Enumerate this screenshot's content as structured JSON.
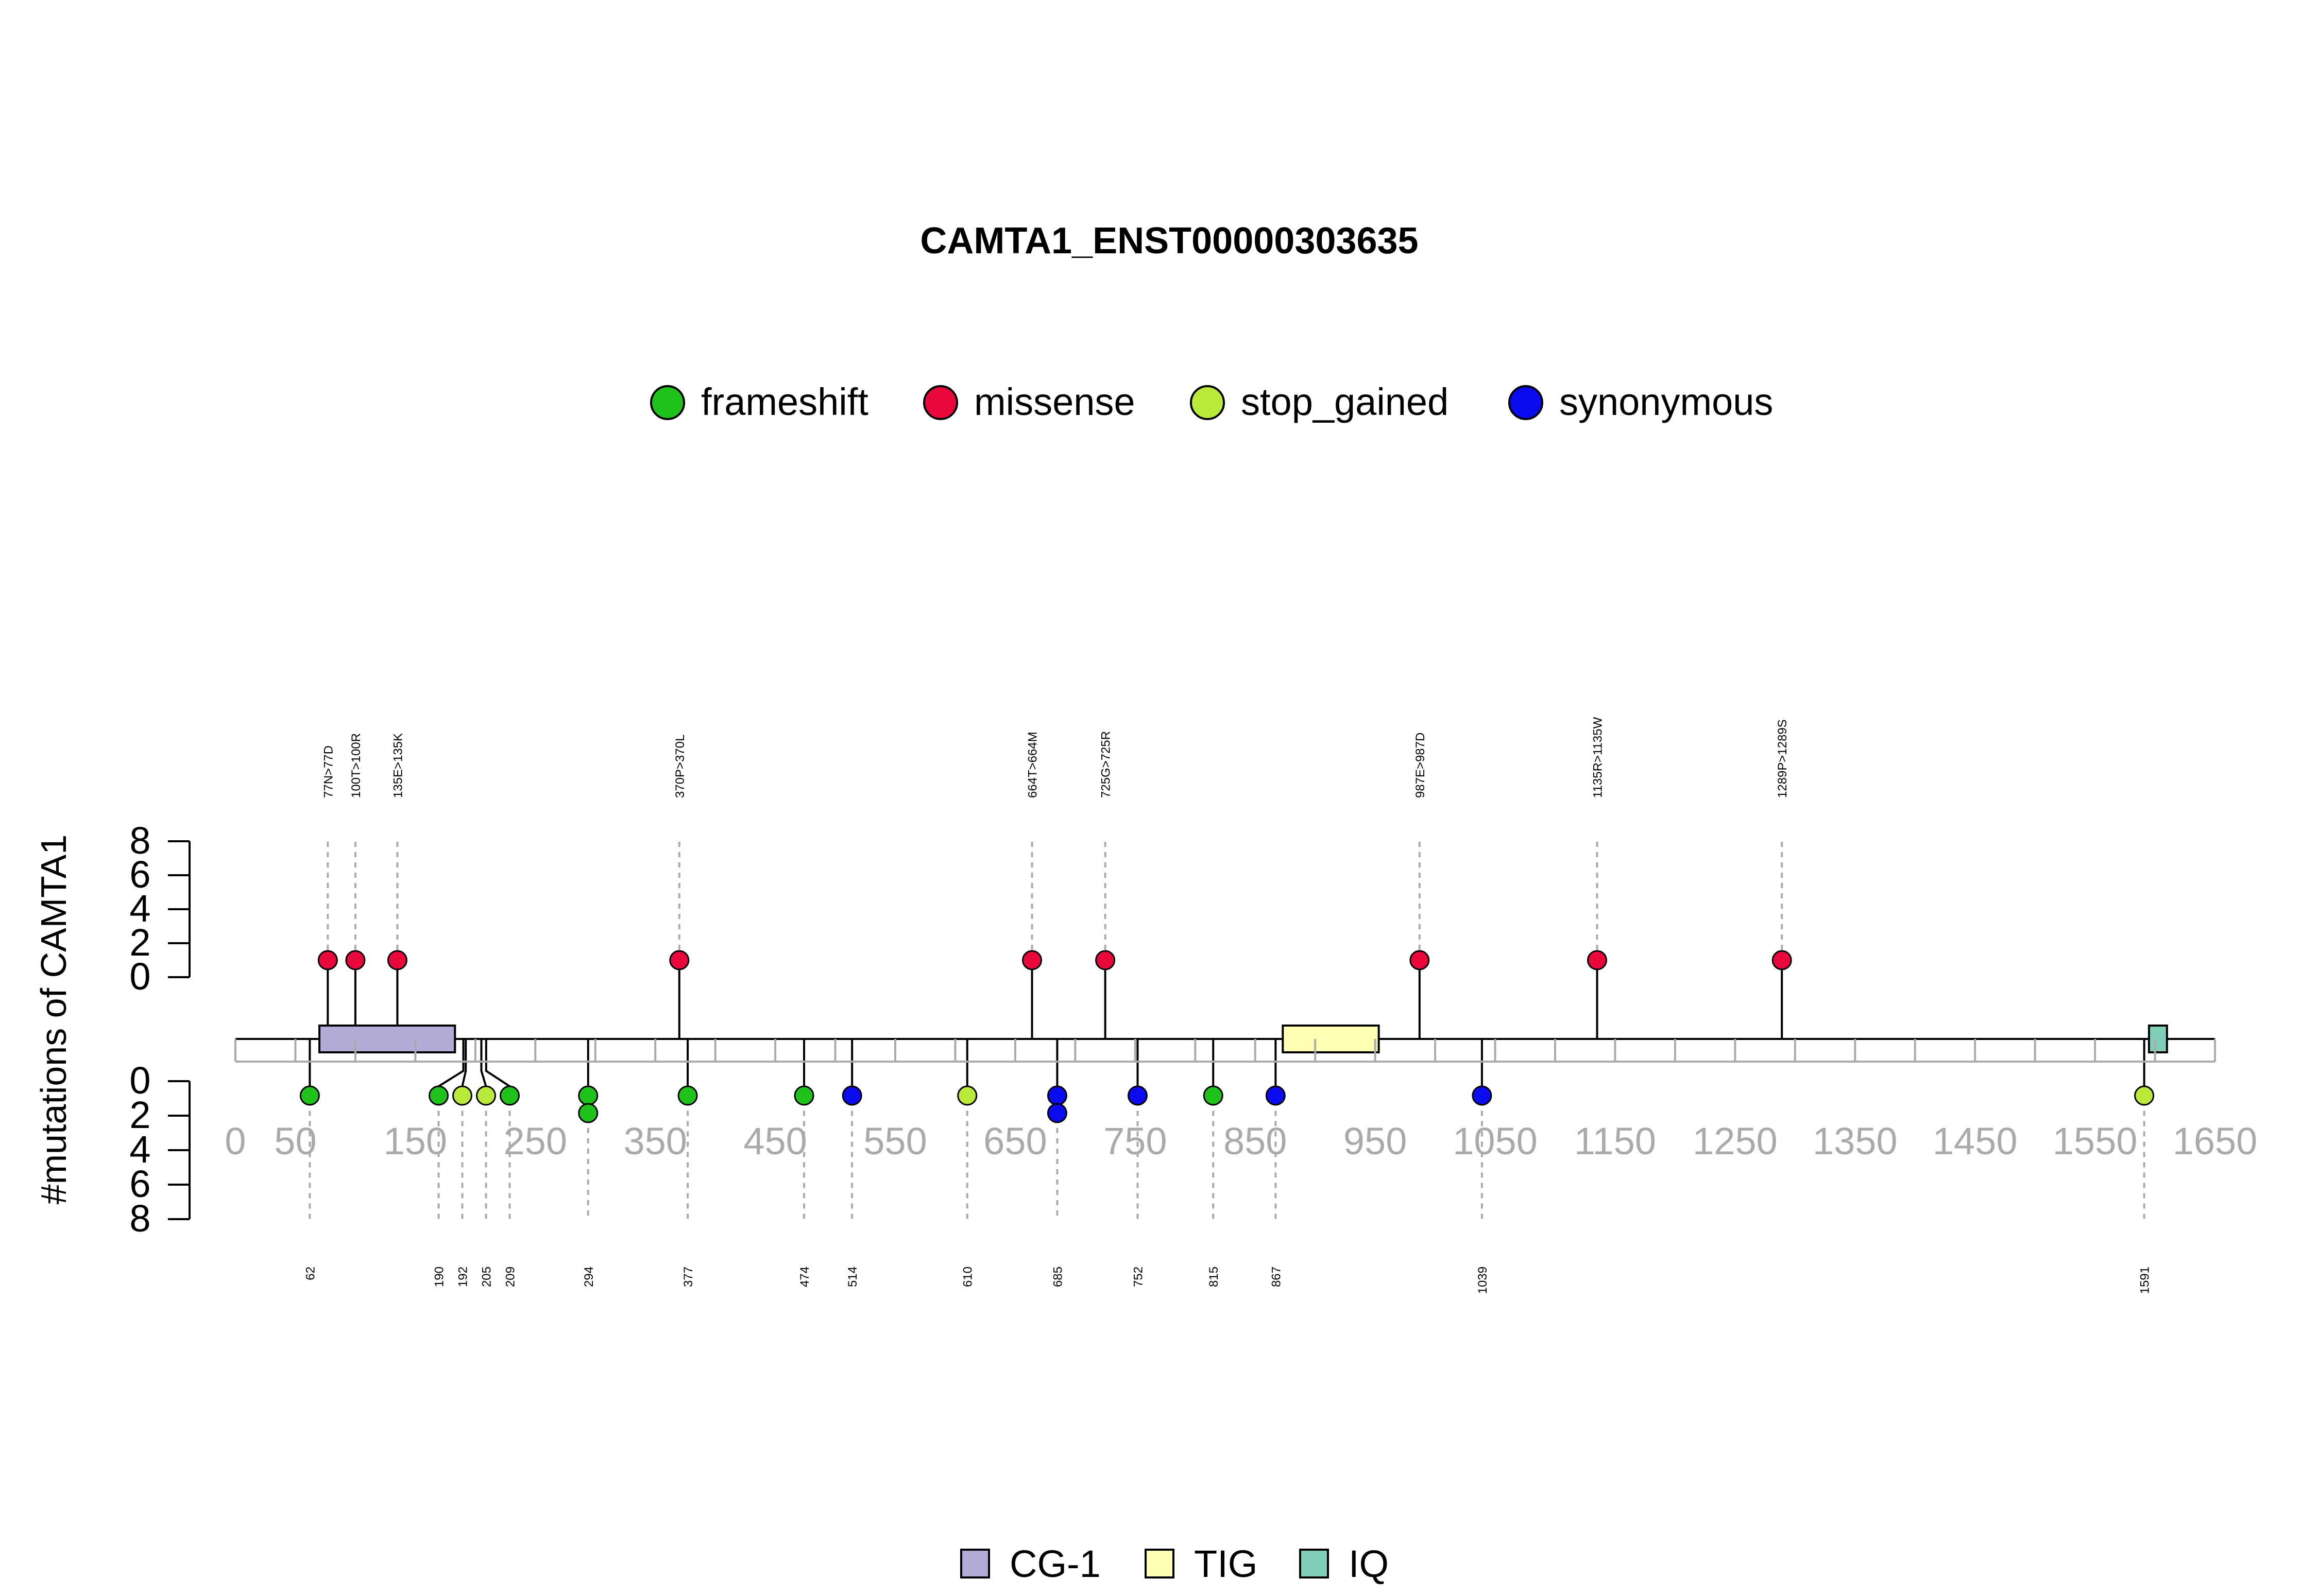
{
  "chart_data": {
    "type": "lollipop",
    "title": "CAMTA1_ENST00000303635",
    "ylabel": "#mutations of CAMTA1",
    "xlim": [
      0,
      1650
    ],
    "ylim_top": [
      0,
      8
    ],
    "ylim_bottom": [
      0,
      8
    ],
    "x_ticks": [
      0,
      50,
      150,
      250,
      350,
      450,
      550,
      650,
      750,
      850,
      950,
      1050,
      1150,
      1250,
      1350,
      1450,
      1550,
      1650
    ],
    "x_tick_labels": [
      "0",
      "50",
      "150",
      "250",
      "350",
      "450",
      "550",
      "650",
      "750",
      "850",
      "950",
      "1050",
      "1150",
      "1250",
      "1350",
      "1450",
      "1550",
      "1650"
    ],
    "x_minor_ticks": [
      100,
      200,
      300,
      400,
      500,
      600,
      700,
      800,
      900,
      1000,
      1100,
      1200,
      1300,
      1400,
      1500,
      1600
    ],
    "y_ticks": [
      0,
      2,
      4,
      6,
      8
    ],
    "y_tick_labels": [
      "0",
      "2",
      "4",
      "6",
      "8"
    ],
    "legend": {
      "placement": "top",
      "items": [
        {
          "label": "frameshift",
          "color": "#1fc21a"
        },
        {
          "label": "missense",
          "color": "#e8083c"
        },
        {
          "label": "stop_gained",
          "color": "#b9ea3a"
        },
        {
          "label": "synonymous",
          "color": "#0b0bf0"
        }
      ]
    },
    "domain_legend": {
      "placement": "bottom",
      "items": [
        {
          "label": "CG-1",
          "color": "#b1abd6"
        },
        {
          "label": "TIG",
          "color": "#ffffb3"
        },
        {
          "label": "IQ",
          "color": "#80cdb8"
        }
      ]
    },
    "domains": [
      {
        "name": "CG-1",
        "start": 70,
        "end": 183,
        "color": "#b1abd6"
      },
      {
        "name": "TIG",
        "start": 873,
        "end": 953,
        "color": "#ffffb3"
      },
      {
        "name": "IQ",
        "start": 1595,
        "end": 1610,
        "color": "#80cdb8"
      }
    ],
    "top_mutations": [
      {
        "pos": 77,
        "label": "77N>77D",
        "type": "missense",
        "count": 1
      },
      {
        "pos": 100,
        "label": "100T>100R",
        "type": "missense",
        "count": 1
      },
      {
        "pos": 135,
        "label": "135E>135K",
        "type": "missense",
        "count": 1
      },
      {
        "pos": 370,
        "label": "370P>370L",
        "type": "missense",
        "count": 1
      },
      {
        "pos": 664,
        "label": "664T>664M",
        "type": "missense",
        "count": 1
      },
      {
        "pos": 725,
        "label": "725G>725R",
        "type": "missense",
        "count": 1
      },
      {
        "pos": 987,
        "label": "987E>987D",
        "type": "missense",
        "count": 1
      },
      {
        "pos": 1135,
        "label": "1135R>1135W",
        "type": "missense",
        "count": 1
      },
      {
        "pos": 1289,
        "label": "1289P>1289S",
        "type": "missense",
        "count": 1
      }
    ],
    "bottom_mutations": [
      {
        "pos": 62,
        "label": "62",
        "types": [
          "frameshift"
        ]
      },
      {
        "pos": 190,
        "label": "190",
        "types": [
          "frameshift"
        ]
      },
      {
        "pos": 192,
        "label": "192",
        "types": [
          "stop_gained"
        ]
      },
      {
        "pos": 205,
        "label": "205",
        "types": [
          "stop_gained"
        ]
      },
      {
        "pos": 209,
        "label": "209",
        "types": [
          "frameshift"
        ]
      },
      {
        "pos": 294,
        "label": "294",
        "types": [
          "frameshift",
          "frameshift"
        ]
      },
      {
        "pos": 377,
        "label": "377",
        "types": [
          "frameshift"
        ]
      },
      {
        "pos": 474,
        "label": "474",
        "types": [
          "frameshift"
        ]
      },
      {
        "pos": 514,
        "label": "514",
        "types": [
          "synonymous"
        ]
      },
      {
        "pos": 610,
        "label": "610",
        "types": [
          "stop_gained"
        ]
      },
      {
        "pos": 685,
        "label": "685",
        "types": [
          "synonymous",
          "synonymous"
        ]
      },
      {
        "pos": 752,
        "label": "752",
        "types": [
          "synonymous"
        ]
      },
      {
        "pos": 815,
        "label": "815",
        "types": [
          "frameshift"
        ]
      },
      {
        "pos": 867,
        "label": "867",
        "types": [
          "synonymous"
        ]
      },
      {
        "pos": 1039,
        "label": "1039",
        "types": [
          "synonymous"
        ]
      },
      {
        "pos": 1591,
        "label": "1591",
        "types": [
          "stop_gained"
        ]
      }
    ]
  }
}
